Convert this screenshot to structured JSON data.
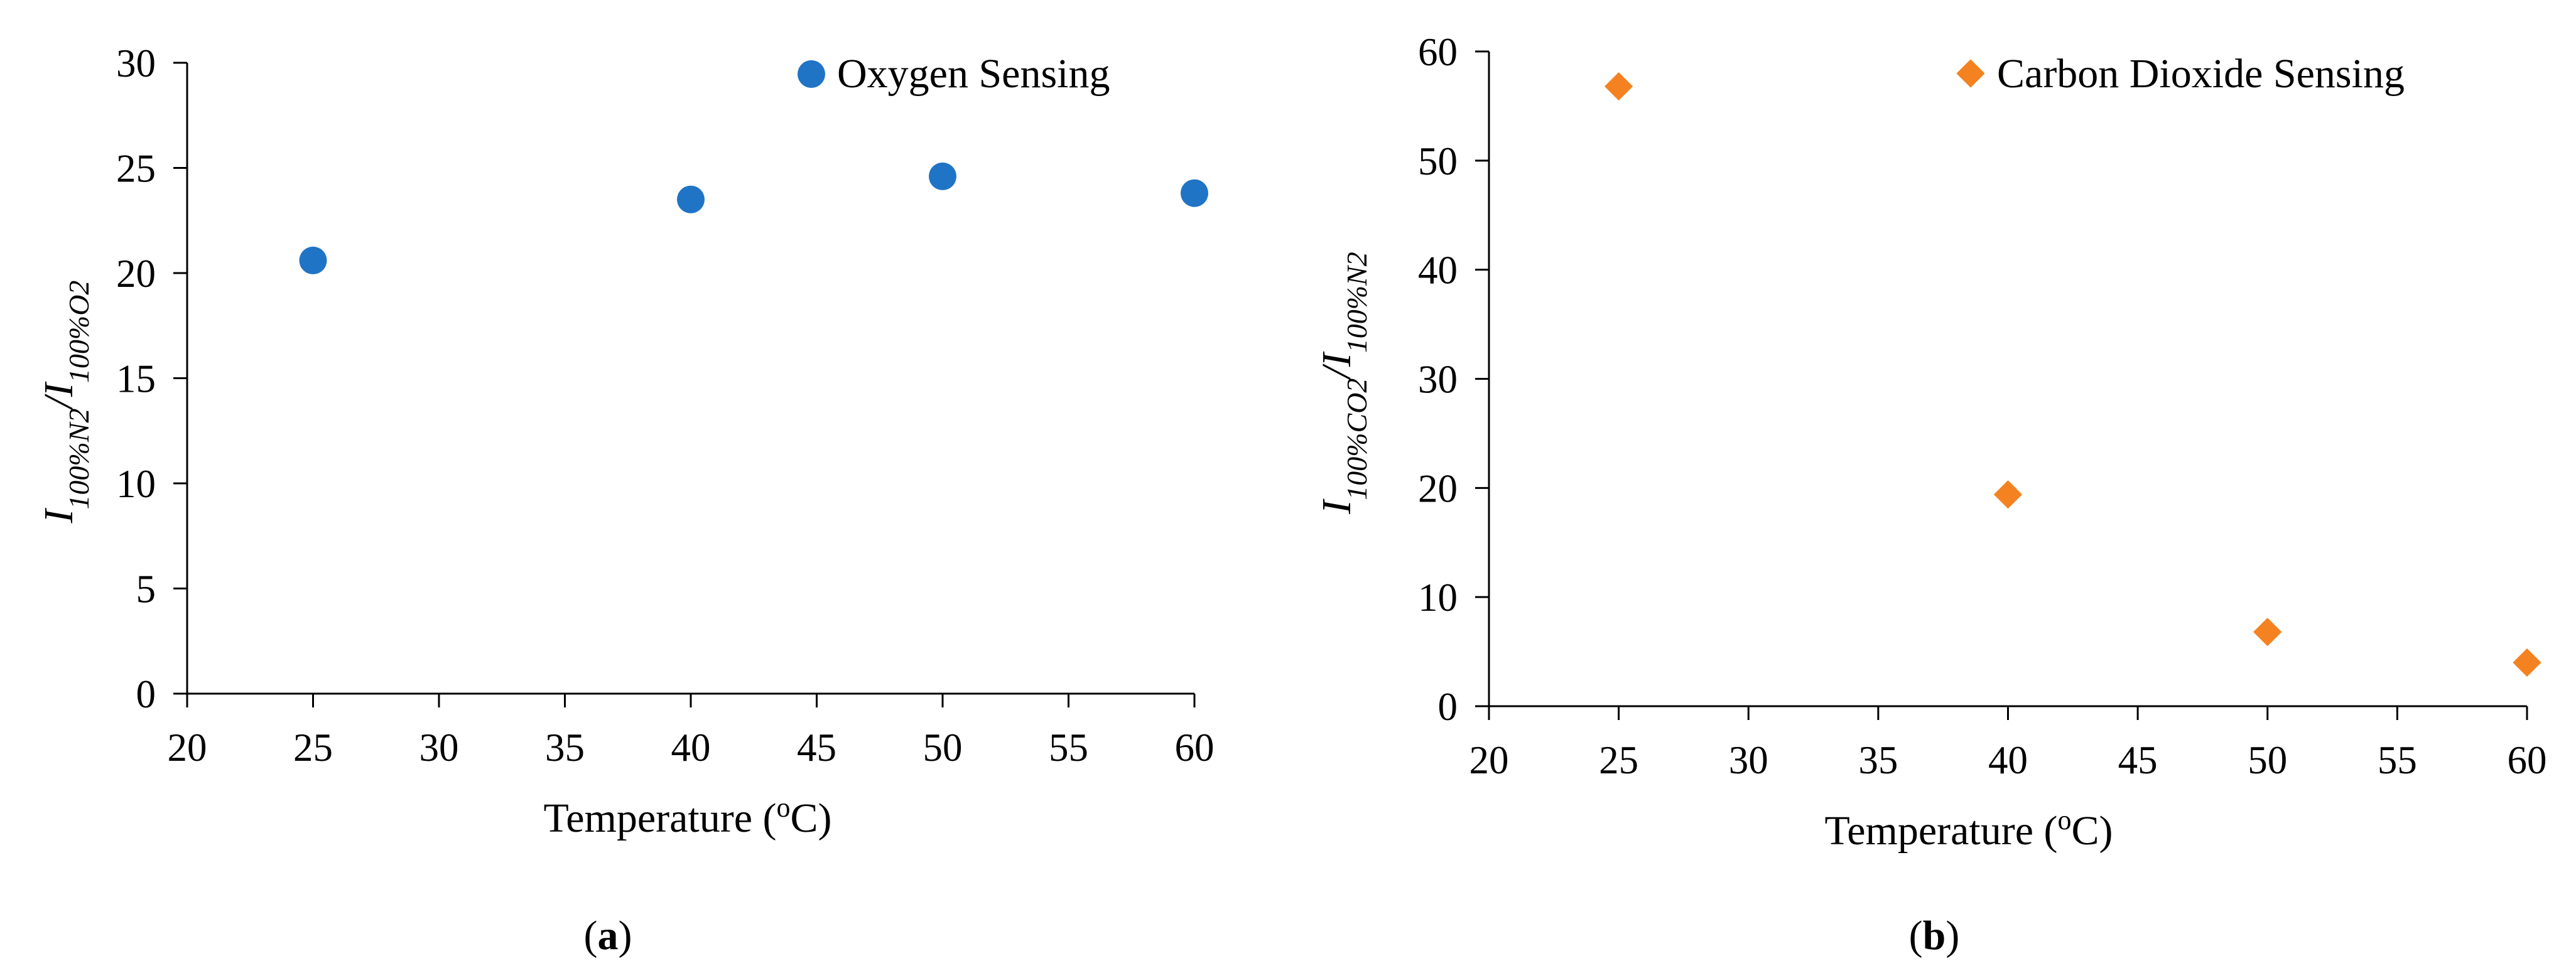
{
  "chart_data": [
    {
      "type": "scatter",
      "panel_label": "a",
      "series": [
        {
          "name": "Oxygen Sensing",
          "marker": "circle",
          "color": "#1f74c6",
          "x": [
            25,
            40,
            50,
            60
          ],
          "y": [
            20.6,
            23.5,
            24.6,
            23.8
          ]
        }
      ],
      "xlabel": "Temperature (",
      "xlabel_sup": "o",
      "xlabel_end": "C)",
      "ylabel": {
        "base": "I",
        "sub": "100%N2",
        "sep": "/",
        "base2": "I",
        "sub2": "100%O2"
      },
      "xlim": [
        20,
        60
      ],
      "ylim": [
        0,
        30
      ],
      "xticks": [
        20,
        25,
        30,
        35,
        40,
        45,
        50,
        55,
        60
      ],
      "yticks": [
        0,
        5,
        10,
        15,
        20,
        25,
        30
      ],
      "grid": false,
      "legend_position": "top-right"
    },
    {
      "type": "scatter",
      "panel_label": "b",
      "series": [
        {
          "name": "Carbon Dioxide Sensing",
          "marker": "diamond",
          "color": "#f58220",
          "x": [
            25,
            40,
            50,
            60
          ],
          "y": [
            56.8,
            19.4,
            6.8,
            4.0
          ]
        }
      ],
      "xlabel": "Temperature (",
      "xlabel_sup": "o",
      "xlabel_end": "C)",
      "ylabel": {
        "base": "I",
        "sub": "100%CO2",
        "sep": "/",
        "base2": "I",
        "sub2": "100%N2"
      },
      "xlim": [
        20,
        60
      ],
      "ylim": [
        0,
        60
      ],
      "xticks": [
        20,
        25,
        30,
        35,
        40,
        45,
        50,
        55,
        60
      ],
      "yticks": [
        0,
        10,
        20,
        30,
        40,
        50,
        60
      ],
      "grid": false,
      "legend_position": "top-right"
    }
  ]
}
